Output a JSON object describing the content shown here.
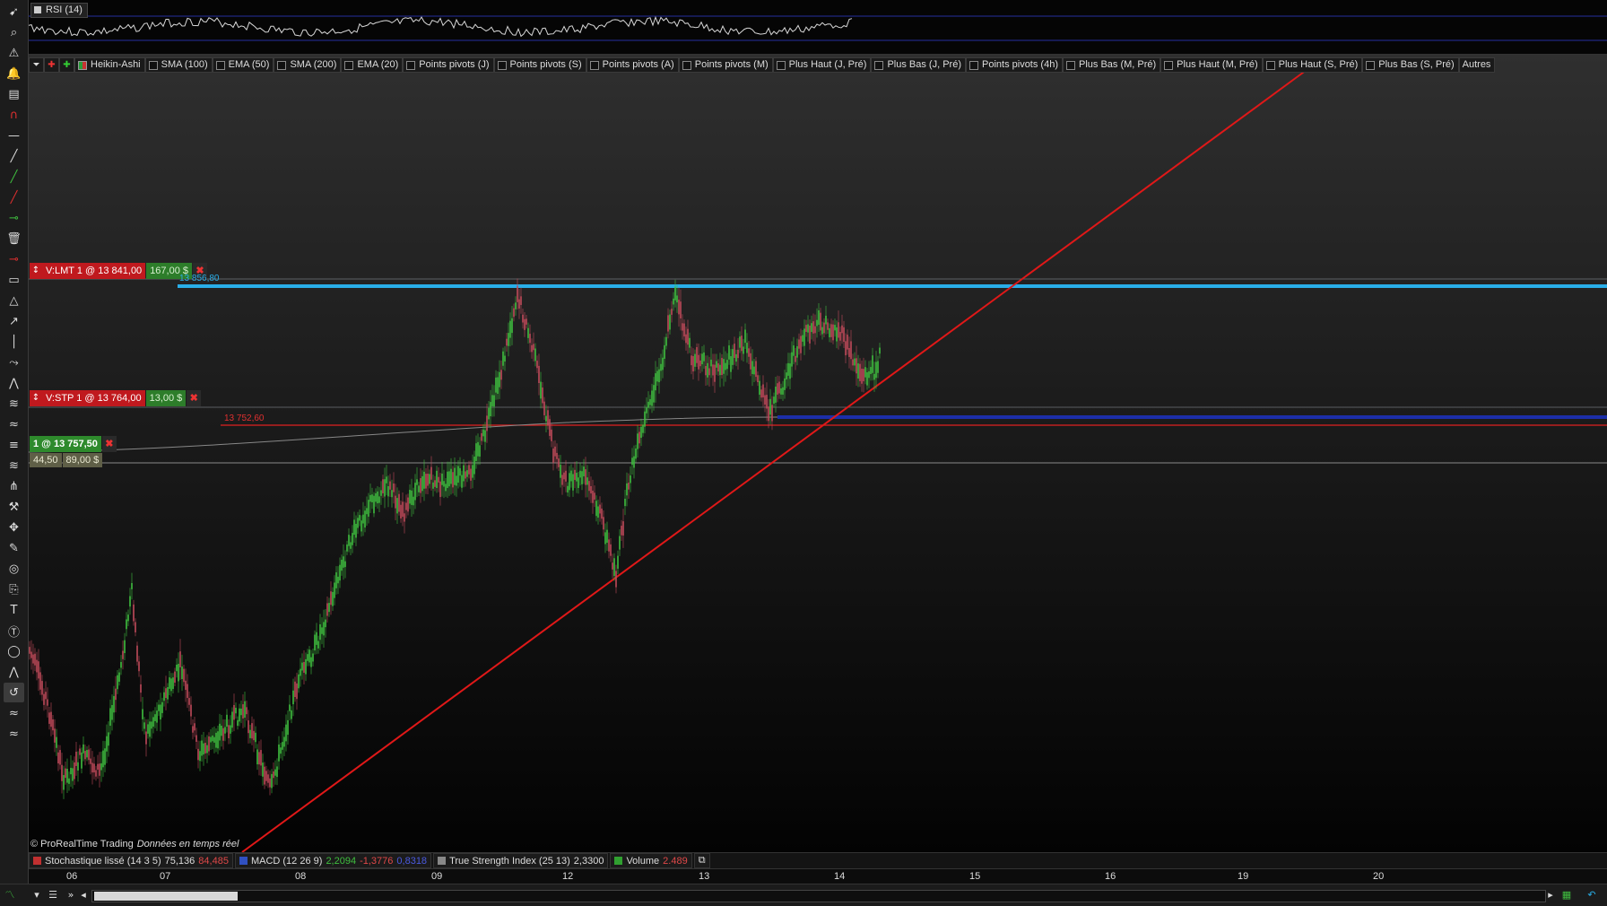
{
  "rsi_panel": {
    "label": "RSI (14)"
  },
  "toolbar_indicators": [
    {
      "label": "Heikin-Ashi",
      "checked": true
    },
    {
      "label": "SMA (100)",
      "checked": false
    },
    {
      "label": "EMA (50)",
      "checked": false
    },
    {
      "label": "SMA (200)",
      "checked": false
    },
    {
      "label": "EMA (20)",
      "checked": false
    },
    {
      "label": "Points pivots (J)",
      "checked": false
    },
    {
      "label": "Points pivots (S)",
      "checked": false
    },
    {
      "label": "Points pivots (A)",
      "checked": false
    },
    {
      "label": "Points pivots (M)",
      "checked": false
    },
    {
      "label": "Plus Haut (J, Pré)",
      "checked": false
    },
    {
      "label": "Plus Bas (J, Pré)",
      "checked": false
    },
    {
      "label": "Points pivots (4h)",
      "checked": false
    },
    {
      "label": "Plus Bas (M, Pré)",
      "checked": false
    },
    {
      "label": "Plus Haut (M, Pré)",
      "checked": false
    },
    {
      "label": "Plus Haut (S, Pré)",
      "checked": false
    },
    {
      "label": "Plus Bas (S, Pré)",
      "checked": false
    },
    {
      "label": "Autres",
      "checked": null
    }
  ],
  "orders": {
    "limit": {
      "text": "V:LMT  1 @ 13 841,00",
      "value": "167,00 $",
      "price_label": "13 856,80"
    },
    "stop": {
      "text": "V:STP  1 @ 13 764,00",
      "value": "13,00 $",
      "price_label": "13 752,60"
    },
    "position": {
      "text": "1 @ 13 757,50",
      "points": "44,50",
      "pnl": "89,00 $"
    }
  },
  "copyright": {
    "brand": "© ProRealTime Trading",
    "status": "Données en temps réel"
  },
  "bottom_indicators": [
    {
      "name": "Stochastique lissé (14 3 5)",
      "values": [
        {
          "v": "75,136",
          "c": "#dddddd"
        },
        {
          "v": "84,485",
          "c": "#e04848"
        }
      ],
      "color": "#c03030"
    },
    {
      "name": "MACD (12 26 9)",
      "values": [
        {
          "v": "2,2094",
          "c": "#3fbf3f"
        },
        {
          "v": "-1,3776",
          "c": "#e04848"
        },
        {
          "v": "0,8318",
          "c": "#4a5ae0"
        }
      ],
      "color": "#3050c0"
    },
    {
      "name": "True Strength Index (25 13)",
      "values": [
        {
          "v": "2,3300",
          "c": "#dddddd"
        }
      ],
      "color": "#888888"
    },
    {
      "name": "Volume",
      "values": [
        {
          "v": "2.489",
          "c": "#e04848"
        }
      ],
      "color": "#30a030"
    }
  ],
  "xaxis_labels": [
    "06",
    "07",
    "08",
    "09",
    "12",
    "13",
    "14",
    "15",
    "16",
    "19",
    "20"
  ],
  "colors": {
    "bull": "#3fbf3f",
    "bear": "#c04a5a",
    "trendline": "#e01818",
    "resistance": "#29aee8",
    "stop_band": "#1c2ea8"
  },
  "sidebar_tools": [
    "pointer-icon",
    "zoom-icon",
    "alert-icon",
    "bell-icon",
    "ruler-icon",
    "magnet-icon",
    "horizontal-line-icon",
    "trendline-icon",
    "green-line-icon",
    "red-line-icon",
    "green-segment-icon",
    "trash-icon",
    "red-segment-icon",
    "rectangle-icon",
    "triangle-icon",
    "arrow-icon",
    "vertical-line-icon",
    "polyline-icon",
    "channel-icon",
    "zigzag-icon",
    "fibonacci-icon",
    "fibo-fan-icon",
    "fibo-retracement-icon",
    "pitchfork-icon",
    "settings-icon",
    "move-icon",
    "pencil-icon",
    "spiral-icon",
    "copy-icon",
    "text-icon",
    "text-circle-icon",
    "ellipse-icon",
    "pattern-icon",
    "undo-icon",
    "wave-icon",
    "wave2-icon"
  ]
}
